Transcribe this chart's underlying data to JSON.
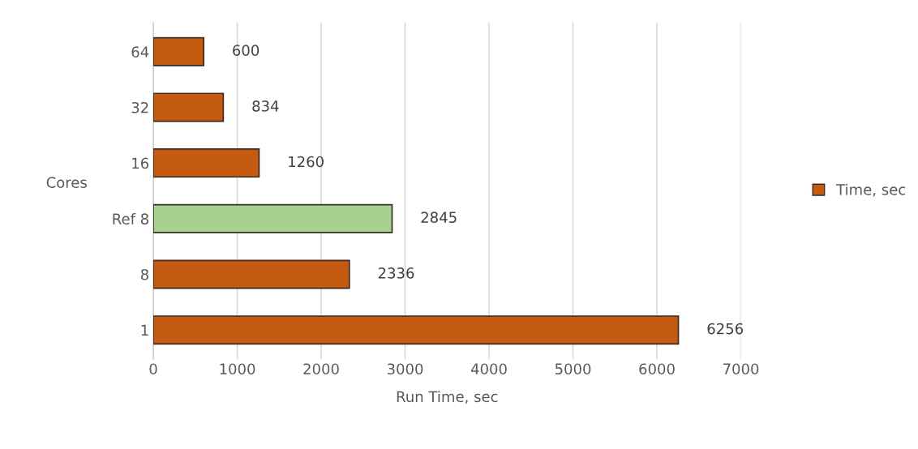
{
  "chart_data": {
    "type": "bar",
    "orientation": "horizontal",
    "categories": [
      "64",
      "32",
      "16",
      "Ref 8",
      "8",
      "1"
    ],
    "series": [
      {
        "name": "Time, sec",
        "color": "#c55a11",
        "colors": [
          "#c55a11",
          "#c55a11",
          "#c55a11",
          "#a9d18e",
          "#c55a11",
          "#c55a11"
        ],
        "values": [
          600,
          834,
          1260,
          2845,
          2336,
          6256
        ]
      }
    ],
    "xlabel": "Run Time, sec",
    "ylabel": "Cores",
    "xlim": [
      0,
      7000
    ],
    "xticks": [
      0,
      1000,
      2000,
      3000,
      4000,
      5000,
      6000,
      7000
    ],
    "grid": "x",
    "legend": "right",
    "data_labels": true
  }
}
